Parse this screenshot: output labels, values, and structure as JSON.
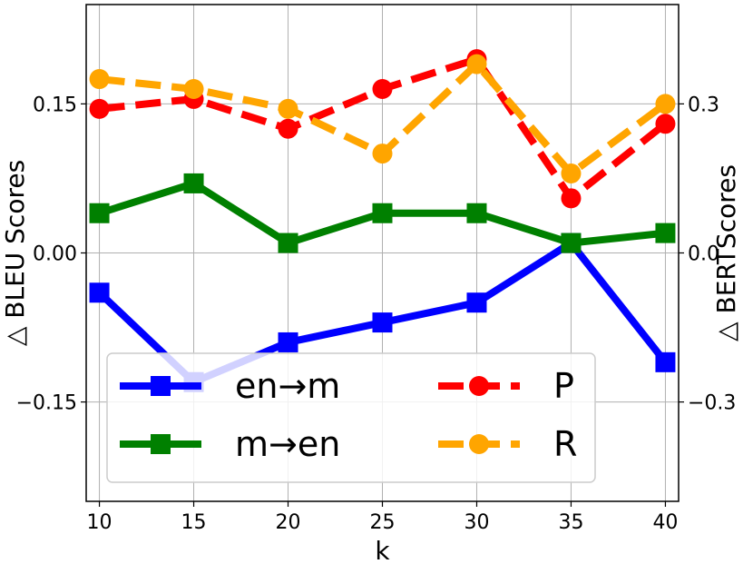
{
  "chart_data": {
    "type": "line",
    "x": [
      10,
      15,
      20,
      25,
      30,
      35,
      40
    ],
    "xlabel": "k",
    "ylabel": "△ BLEU Scores",
    "ylabel_right": "△ BERTScores",
    "xlim": [
      9.3,
      40.7
    ],
    "ylim": [
      -0.25,
      0.25
    ],
    "ylim_right": [
      -0.5,
      0.5
    ],
    "x_ticks": [
      10,
      15,
      20,
      25,
      30,
      35,
      40
    ],
    "y_ticks": [
      -0.15,
      0.0,
      0.15
    ],
    "y_tick_labels": [
      "−0.15",
      "0.00",
      "0.15"
    ],
    "y_ticks_right": [
      -0.3,
      0.0,
      0.3
    ],
    "y_tick_labels_right": [
      "−0.3",
      "0.0",
      "0.3"
    ],
    "grid": true,
    "legend_position": "bottom-left",
    "series": [
      {
        "name": "en→m",
        "axis": "left",
        "values": [
          -0.04,
          -0.13,
          -0.09,
          -0.07,
          -0.05,
          0.01,
          -0.11
        ],
        "color": "#0000ff",
        "marker": "square",
        "dashed": false
      },
      {
        "name": "m→en",
        "axis": "left",
        "values": [
          0.04,
          0.07,
          0.01,
          0.04,
          0.04,
          0.01,
          0.02
        ],
        "color": "#008000",
        "marker": "square",
        "dashed": false
      },
      {
        "name": "P",
        "axis": "right",
        "values": [
          0.29,
          0.31,
          0.25,
          0.33,
          0.39,
          0.11,
          0.26
        ],
        "color": "#ff0000",
        "marker": "circle",
        "dashed": true
      },
      {
        "name": "R",
        "axis": "right",
        "values": [
          0.35,
          0.33,
          0.29,
          0.2,
          0.38,
          0.16,
          0.3
        ],
        "color": "#ffa500",
        "marker": "circle",
        "dashed": true
      }
    ]
  }
}
